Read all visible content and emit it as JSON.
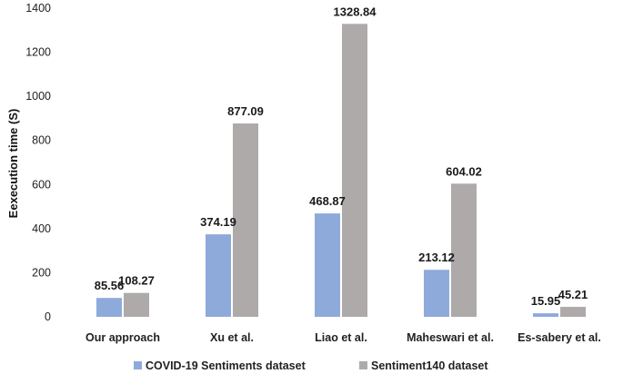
{
  "chart_data": {
    "type": "bar",
    "title": "",
    "xlabel": "",
    "ylabel": "Eexecution time  (S)",
    "ylim": [
      0,
      1400
    ],
    "yticks": [
      0,
      200,
      400,
      600,
      800,
      1000,
      1200,
      1400
    ],
    "grid": false,
    "legend_position": "bottom",
    "categories": [
      "Our approach",
      "Xu et al.",
      "Liao et al.",
      "Maheswari et al.",
      "Es-sabery et al."
    ],
    "series": [
      {
        "name": "COVID-19 Sentiments dataset",
        "color": "#8eaadb",
        "values": [
          85.56,
          374.19,
          468.87,
          213.12,
          15.95
        ],
        "labels": [
          "85.56",
          "374.19",
          "468.87",
          "213.12",
          "15.95"
        ]
      },
      {
        "name": "Sentiment140 dataset",
        "color": "#aeaaaa",
        "values": [
          108.27,
          877.09,
          1328.84,
          604.02,
          45.21
        ],
        "labels": [
          "108.27",
          "877.09",
          "1328.84",
          "604.02",
          "45.21"
        ]
      }
    ]
  }
}
